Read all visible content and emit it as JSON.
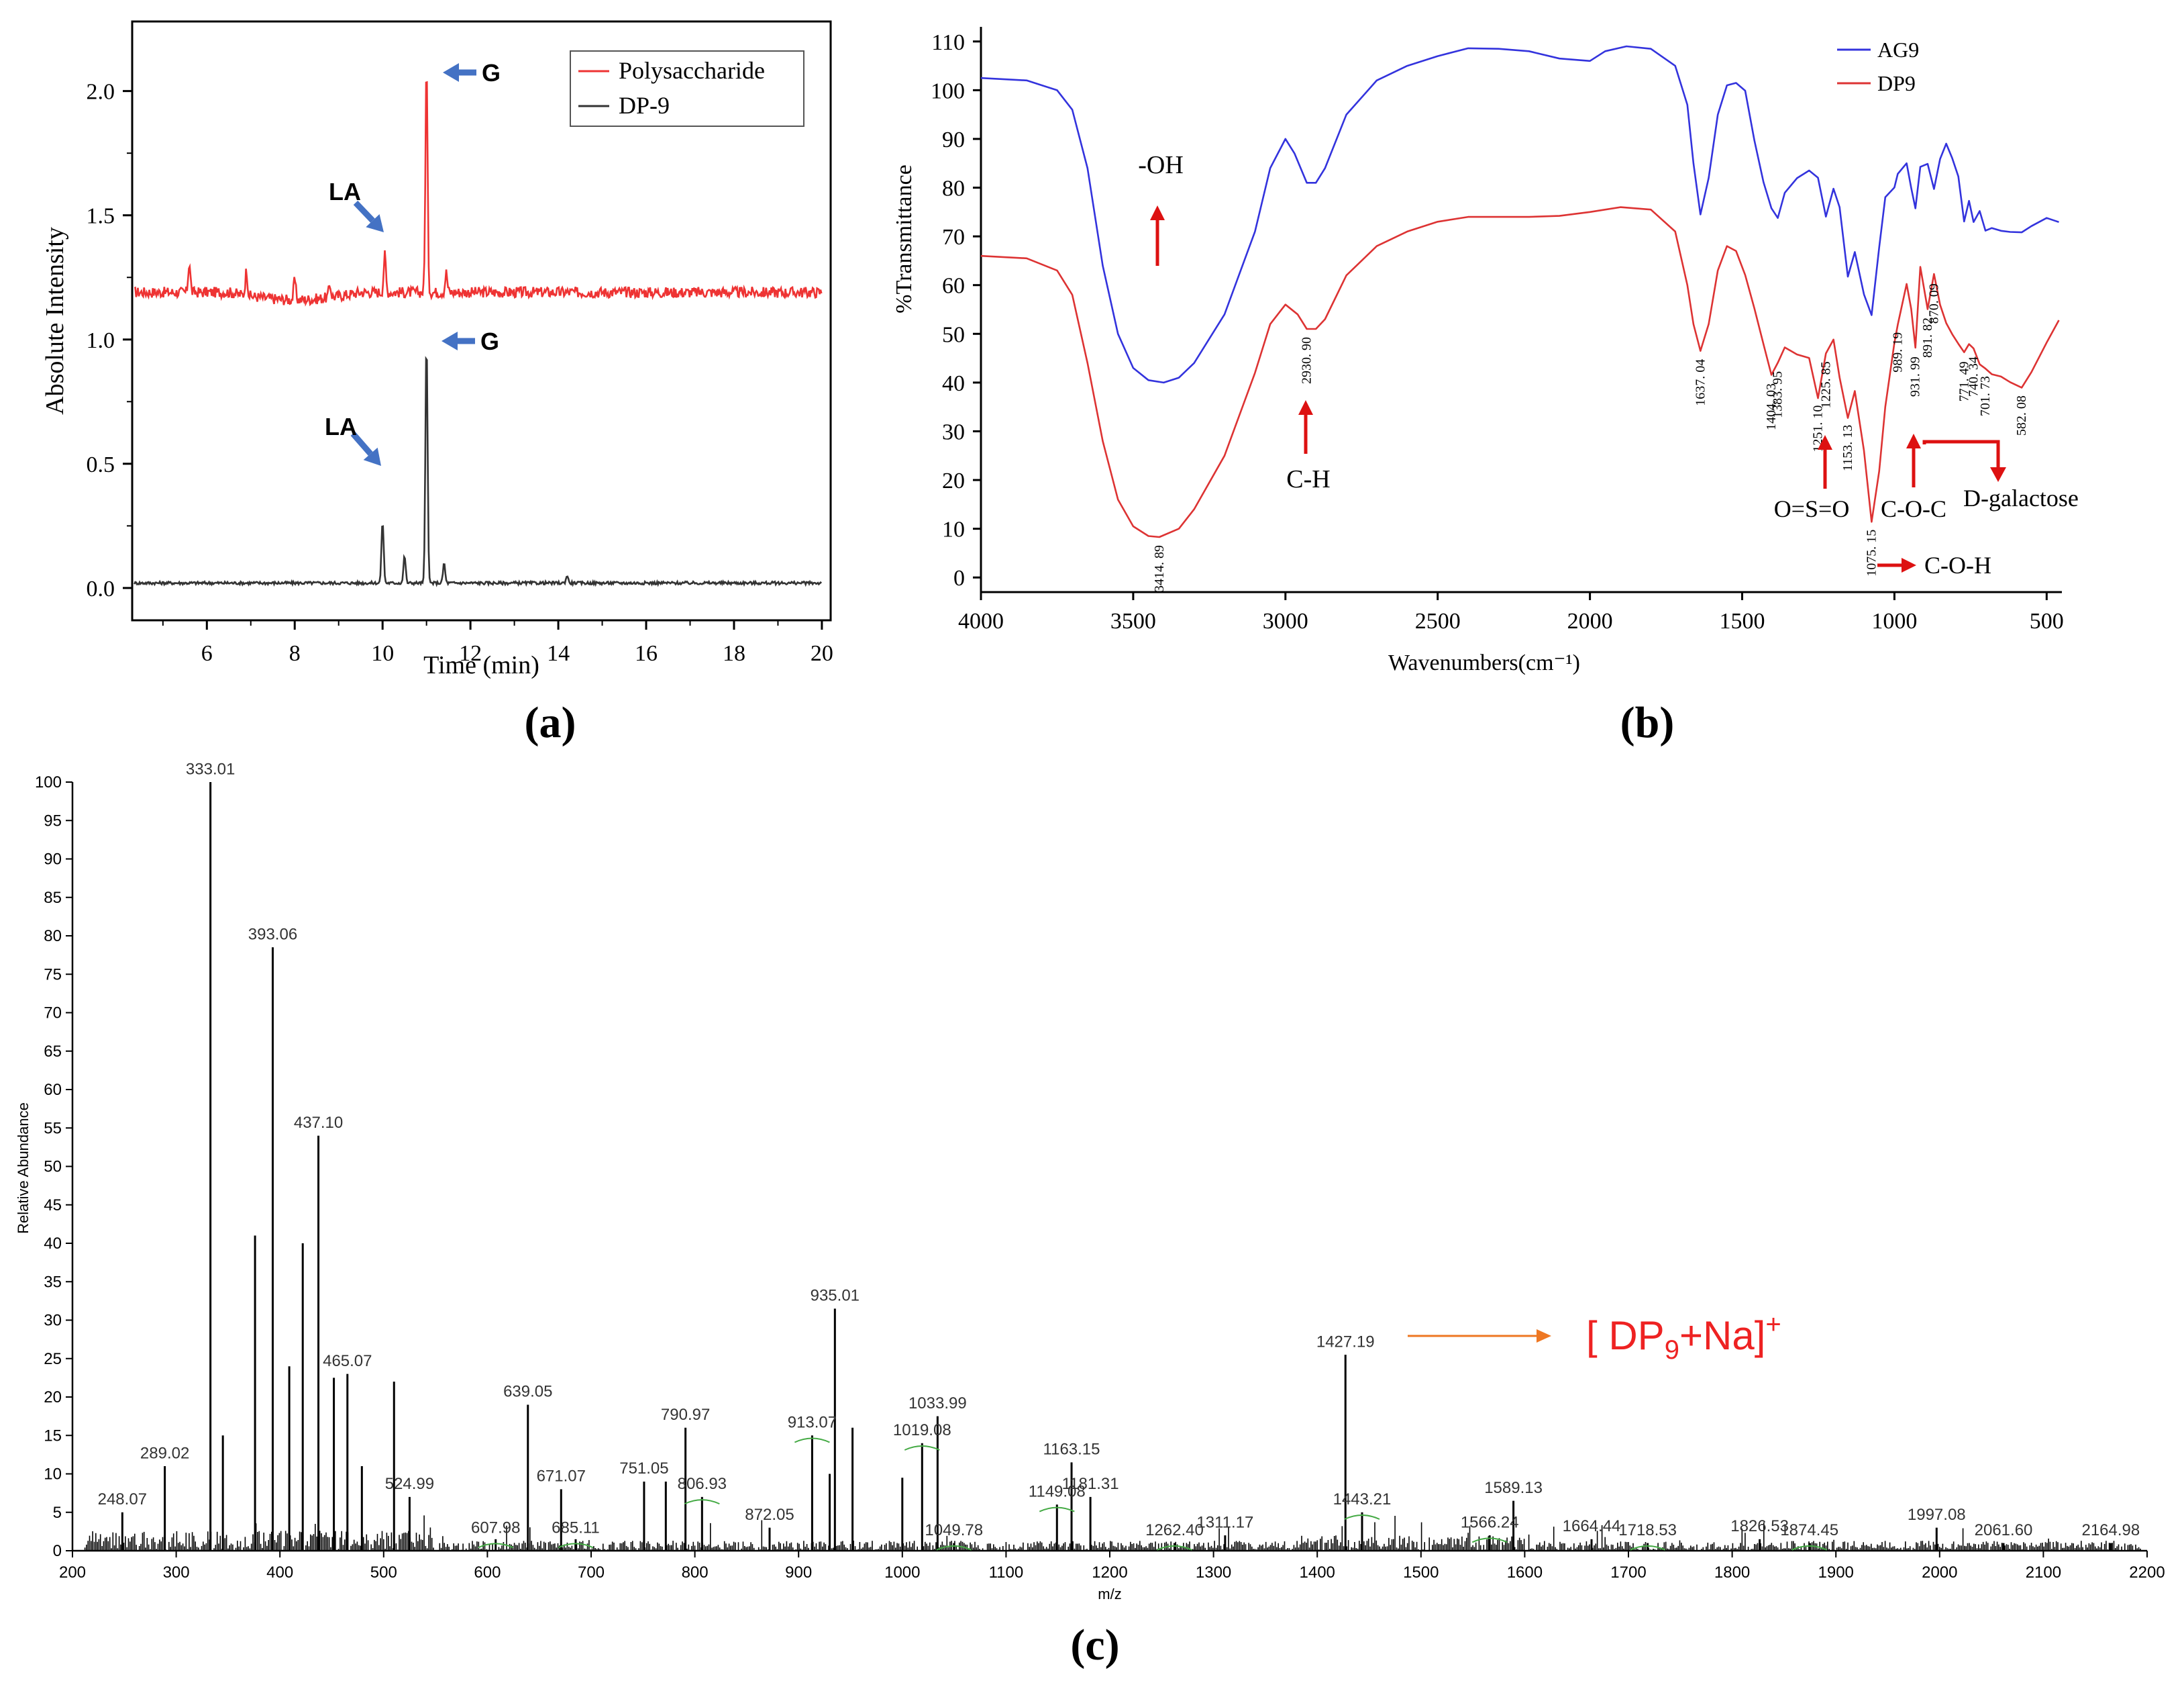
{
  "panel_labels": {
    "a": "(a)",
    "b": "(b)",
    "c": "(c)"
  },
  "colors": {
    "red": "#ee3333",
    "dark": "#333333",
    "blue": "#3333dd",
    "ir_red": "#dd3333",
    "arrow_blue": "#4472c4",
    "arrow_red": "#dd1111",
    "arrow_orange": "#ee7722",
    "ms_red": "#ee2222",
    "label_green": "#44aa44"
  },
  "chart_data": [
    {
      "id": "a",
      "type": "line",
      "title": "",
      "xlabel": "Time (min)",
      "ylabel": "Absolute Intensity",
      "xlim": [
        4.3,
        20.2
      ],
      "ylim": [
        -0.13,
        2.28
      ],
      "xticks": [
        6,
        8,
        10,
        12,
        14,
        16,
        18,
        20
      ],
      "yticks": [
        0.0,
        0.5,
        1.0,
        1.5,
        2.0
      ],
      "ytick_labels": [
        "0.0",
        "0.5",
        "1.0",
        "1.5",
        "2.0"
      ],
      "legend_placement": "top-right",
      "series": [
        {
          "name": "Polysaccharide",
          "color": "#ee3333",
          "baseline": 1.19,
          "peaks": [
            [
              5.6,
              1.31
            ],
            [
              6.9,
              1.29
            ],
            [
              8.0,
              1.27
            ],
            [
              8.8,
              1.24
            ],
            [
              10.05,
              1.34
            ],
            [
              11.0,
              2.1
            ],
            [
              11.45,
              1.27
            ]
          ]
        },
        {
          "name": "DP-9",
          "color": "#333333",
          "baseline": 0.02,
          "peaks": [
            [
              10.0,
              0.27
            ],
            [
              10.5,
              0.13
            ],
            [
              11.0,
              1.0
            ],
            [
              11.4,
              0.1
            ],
            [
              14.2,
              0.05
            ]
          ]
        }
      ],
      "annotations": [
        {
          "text": "G",
          "x": 11.0,
          "y": 2.1
        },
        {
          "text": "LA",
          "x": 10.05,
          "y": 1.34
        },
        {
          "text": "G",
          "x": 11.0,
          "y": 1.0
        },
        {
          "text": "LA",
          "x": 10.0,
          "y": 0.27
        }
      ]
    },
    {
      "id": "b",
      "type": "line",
      "title": "",
      "xlabel": "Wavenumbers(cm⁻¹)",
      "ylabel": "%Transmittance",
      "xlim": [
        4000,
        450
      ],
      "ylim": [
        -3,
        113
      ],
      "xticks": [
        4000,
        3500,
        3000,
        2500,
        2000,
        1500,
        1000,
        500
      ],
      "yticks": [
        0,
        10,
        20,
        30,
        40,
        50,
        60,
        70,
        80,
        90,
        100,
        110
      ],
      "legend_placement": "top-right",
      "series": [
        {
          "name": "AG9",
          "color": "#3333dd",
          "points": [
            [
              4000,
              102.5
            ],
            [
              3850,
              102
            ],
            [
              3750,
              100
            ],
            [
              3700,
              96
            ],
            [
              3650,
              84
            ],
            [
              3600,
              64
            ],
            [
              3550,
              50
            ],
            [
              3500,
              43
            ],
            [
              3450,
              40.5
            ],
            [
              3400,
              40
            ],
            [
              3350,
              41
            ],
            [
              3300,
              44
            ],
            [
              3200,
              54
            ],
            [
              3100,
              71
            ],
            [
              3050,
              84
            ],
            [
              3000,
              90
            ],
            [
              2970,
              87
            ],
            [
              2930,
              81
            ],
            [
              2900,
              81
            ],
            [
              2870,
              84
            ],
            [
              2800,
              95
            ],
            [
              2700,
              102
            ],
            [
              2600,
              105
            ],
            [
              2500,
              107
            ],
            [
              2400,
              108.6
            ],
            [
              2300,
              108.5
            ],
            [
              2200,
              108
            ],
            [
              2100,
              106.5
            ],
            [
              2000,
              106
            ],
            [
              1950,
              108
            ],
            [
              1880,
              109
            ],
            [
              1800,
              108.5
            ],
            [
              1720,
              105
            ],
            [
              1680,
              97
            ],
            [
              1660,
              85
            ],
            [
              1637,
              74.5
            ],
            [
              1610,
              82
            ],
            [
              1580,
              95
            ],
            [
              1550,
              101
            ],
            [
              1520,
              101.5
            ],
            [
              1490,
              100
            ],
            [
              1460,
              90
            ],
            [
              1430,
              81
            ],
            [
              1404,
              76
            ],
            [
              1383,
              73.5
            ],
            [
              1360,
              79
            ],
            [
              1320,
              82
            ],
            [
              1280,
              83.5
            ],
            [
              1251,
              82
            ],
            [
              1225,
              74
            ],
            [
              1200,
              80
            ],
            [
              1180,
              76
            ],
            [
              1153,
              62
            ],
            [
              1130,
              67
            ],
            [
              1100,
              58
            ],
            [
              1075,
              54
            ],
            [
              1050,
              68
            ],
            [
              1030,
              78
            ],
            [
              1000,
              80
            ],
            [
              989,
              83
            ],
            [
              960,
              85
            ],
            [
              945,
              80
            ],
            [
              931,
              76
            ],
            [
              915,
              84
            ],
            [
              891,
              85
            ],
            [
              870,
              80
            ],
            [
              850,
              86
            ],
            [
              830,
              89
            ],
            [
              810,
              86
            ],
            [
              790,
              82
            ],
            [
              771,
              73
            ],
            [
              755,
              77
            ],
            [
              740,
              73
            ],
            [
              720,
              75
            ],
            [
              701,
              71
            ],
            [
              680,
              72
            ],
            [
              650,
              71
            ],
            [
              620,
              71
            ],
            [
              582,
              71
            ],
            [
              550,
              72
            ],
            [
              500,
              74
            ],
            [
              460,
              73
            ]
          ]
        },
        {
          "name": "DP9",
          "color": "#dd3333",
          "points": [
            [
              4000,
              66
            ],
            [
              3850,
              65.5
            ],
            [
              3750,
              63
            ],
            [
              3700,
              58
            ],
            [
              3650,
              44
            ],
            [
              3600,
              28
            ],
            [
              3550,
              16
            ],
            [
              3500,
              10.5
            ],
            [
              3450,
              8.5
            ],
            [
              3414,
              8.3
            ],
            [
              3350,
              10
            ],
            [
              3300,
              14
            ],
            [
              3200,
              25
            ],
            [
              3100,
              42
            ],
            [
              3050,
              52
            ],
            [
              3000,
              56
            ],
            [
              2960,
              54
            ],
            [
              2930,
              51
            ],
            [
              2900,
              51
            ],
            [
              2870,
              53
            ],
            [
              2800,
              62
            ],
            [
              2700,
              68
            ],
            [
              2600,
              71
            ],
            [
              2500,
              73
            ],
            [
              2400,
              74
            ],
            [
              2300,
              74
            ],
            [
              2200,
              74
            ],
            [
              2100,
              74.2
            ],
            [
              2000,
              75
            ],
            [
              1900,
              76
            ],
            [
              1800,
              75.5
            ],
            [
              1720,
              71
            ],
            [
              1680,
              60
            ],
            [
              1660,
              52
            ],
            [
              1637,
              46.5
            ],
            [
              1610,
              52
            ],
            [
              1580,
              63
            ],
            [
              1550,
              68
            ],
            [
              1520,
              67
            ],
            [
              1490,
              62
            ],
            [
              1460,
              55
            ],
            [
              1430,
              48
            ],
            [
              1404,
              41.5
            ],
            [
              1383,
              44
            ],
            [
              1360,
              47
            ],
            [
              1320,
              46
            ],
            [
              1280,
              45
            ],
            [
              1251,
              37
            ],
            [
              1225,
              46
            ],
            [
              1200,
              49
            ],
            [
              1180,
              41
            ],
            [
              1153,
              33
            ],
            [
              1130,
              38
            ],
            [
              1100,
              26
            ],
            [
              1075,
              11.5
            ],
            [
              1050,
              22
            ],
            [
              1030,
              35
            ],
            [
              1000,
              48
            ],
            [
              989,
              52
            ],
            [
              960,
              60
            ],
            [
              945,
              55
            ],
            [
              931,
              47
            ],
            [
              915,
              64
            ],
            [
              891,
              55
            ],
            [
              870,
              62
            ],
            [
              850,
              56
            ],
            [
              830,
              52
            ],
            [
              810,
              50
            ],
            [
              790,
              48
            ],
            [
              771,
              46
            ],
            [
              755,
              48
            ],
            [
              740,
              47
            ],
            [
              720,
              44
            ],
            [
              701,
              43
            ],
            [
              680,
              42
            ],
            [
              650,
              41
            ],
            [
              620,
              40
            ],
            [
              582,
              39
            ],
            [
              550,
              42
            ],
            [
              500,
              48
            ],
            [
              460,
              53
            ]
          ]
        }
      ],
      "peak_labels": [
        "3414. 89",
        "2930. 90",
        "1637. 04",
        "1404. 03",
        "1383. 95",
        "1251. 10",
        "1225. 85",
        "1153. 13",
        "1075. 15",
        "989. 19",
        "931. 99",
        "891. 82",
        "870. 09",
        "771. 49",
        "740. 34",
        "701. 73",
        "582. 08"
      ],
      "annotations": [
        "-OH",
        "C-H",
        "O=S=O",
        "C-O-C",
        "D-galactose",
        "C-O-H"
      ]
    },
    {
      "id": "c",
      "type": "bar",
      "title": "",
      "xlabel": "m/z",
      "ylabel": "Relative Abundance",
      "xlim": [
        200,
        2200
      ],
      "ylim": [
        0,
        100
      ],
      "xticks": [
        200,
        300,
        400,
        500,
        600,
        700,
        800,
        900,
        1000,
        1100,
        1200,
        1300,
        1400,
        1500,
        1600,
        1700,
        1800,
        1900,
        2000,
        2100,
        2200
      ],
      "yticks": [
        0,
        5,
        10,
        15,
        20,
        25,
        30,
        35,
        40,
        45,
        50,
        55,
        60,
        65,
        70,
        75,
        80,
        85,
        90,
        95,
        100
      ],
      "peaks": [
        [
          248.07,
          5
        ],
        [
          289.02,
          11
        ],
        [
          333.01,
          100
        ],
        [
          345,
          15
        ],
        [
          376,
          41
        ],
        [
          393.06,
          78.5
        ],
        [
          409,
          24
        ],
        [
          422,
          40
        ],
        [
          437.1,
          54
        ],
        [
          452,
          22.5
        ],
        [
          465.07,
          23
        ],
        [
          479,
          11
        ],
        [
          510,
          22
        ],
        [
          524.99,
          7
        ],
        [
          607.98,
          1.5
        ],
        [
          639.05,
          19
        ],
        [
          671.07,
          8
        ],
        [
          685.11,
          1.5
        ],
        [
          751.05,
          9
        ],
        [
          772,
          9
        ],
        [
          790.97,
          16
        ],
        [
          806.93,
          7
        ],
        [
          872.05,
          3
        ],
        [
          913.07,
          15
        ],
        [
          930,
          10
        ],
        [
          935.01,
          31.5
        ],
        [
          952,
          16
        ],
        [
          1000,
          9.5
        ],
        [
          1019.08,
          14
        ],
        [
          1033.99,
          17.5
        ],
        [
          1049.78,
          1
        ],
        [
          1149.08,
          6
        ],
        [
          1163.15,
          11.5
        ],
        [
          1181.31,
          7
        ],
        [
          1262.4,
          1
        ],
        [
          1311.17,
          2
        ],
        [
          1427.19,
          25.5
        ],
        [
          1443.21,
          5
        ],
        [
          1566.24,
          2
        ],
        [
          1589.13,
          6.5
        ],
        [
          1664.44,
          1.5
        ],
        [
          1718.53,
          1
        ],
        [
          1826.53,
          1.5
        ],
        [
          1874.45,
          1
        ],
        [
          1997.08,
          3
        ],
        [
          2061.6,
          1
        ],
        [
          2164.98,
          1
        ]
      ],
      "labels": [
        "248.07",
        "289.02",
        "333.01",
        "393.06",
        "437.10",
        "465.07",
        "524.99",
        "607.98",
        "639.05",
        "671.07",
        "685.11",
        "751.05",
        "790.97",
        "806.93",
        "872.05",
        "913.07",
        "935.01",
        "1019.08",
        "1033.99",
        "1049.78",
        "1149.08",
        "1163.15",
        "1181.31",
        "1262.40",
        "1311.17",
        "1427.19",
        "1443.21",
        "1566.24",
        "1589.13",
        "1664.44",
        "1718.53",
        "1826.53",
        "1874.45",
        "1997.08",
        "2061.60",
        "2164.98"
      ],
      "annotation": {
        "text_prefix": "[ DP",
        "subscript": "9",
        "text_suffix": "+Na]",
        "superscript": "+"
      }
    }
  ]
}
